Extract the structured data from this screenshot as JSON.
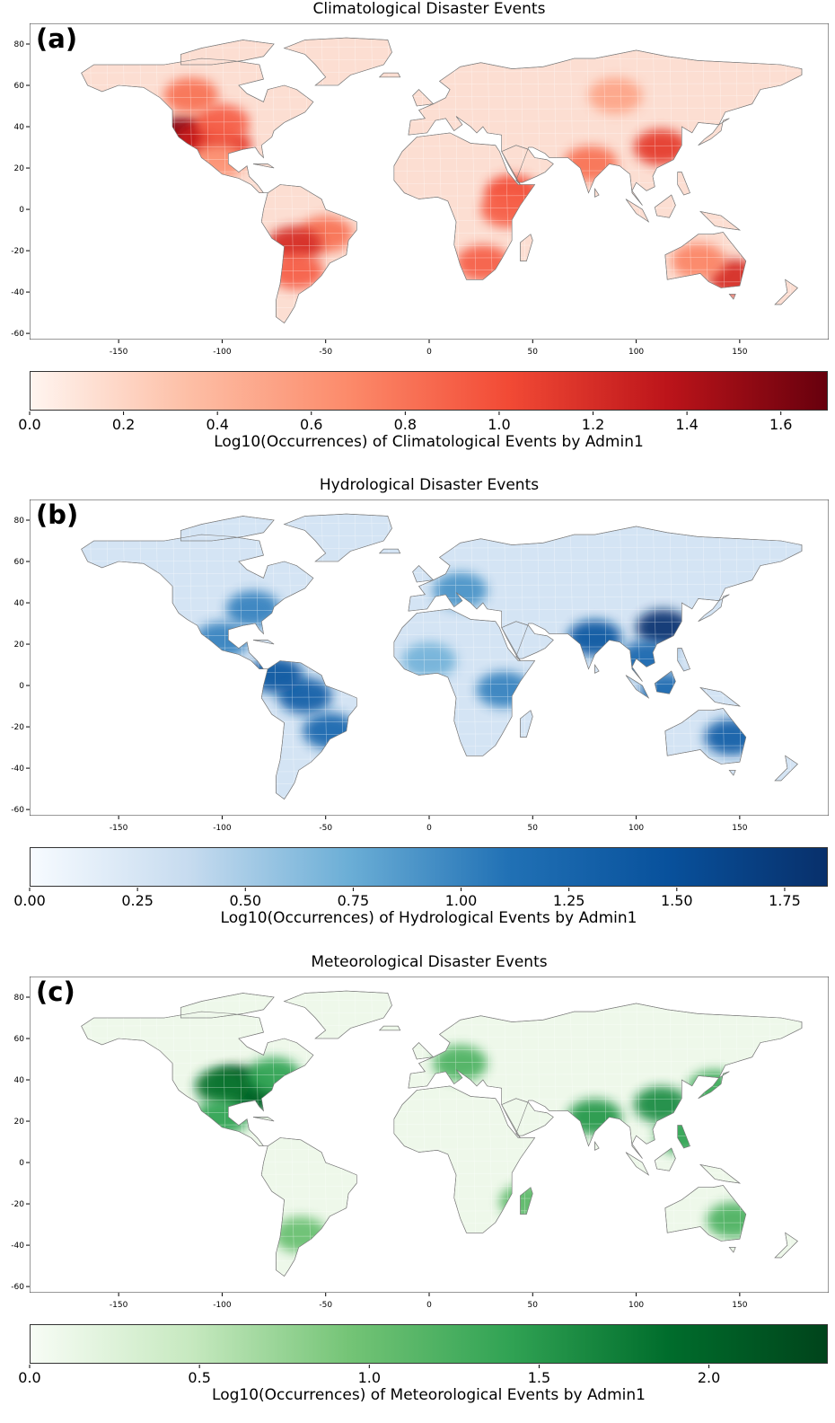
{
  "panels": [
    {
      "label": "(a)",
      "title": "Climatological Disaster Events",
      "colorbar_label": "Log10(Occurrences) of Climatological Events by Admin1",
      "colorbar_max": 1.7,
      "colorbar_ticks": [
        "0.0",
        "0.2",
        "0.4",
        "0.6",
        "0.8",
        "1.0",
        "1.2",
        "1.4",
        "1.6"
      ],
      "colorbar_tick_values": [
        0,
        0.2,
        0.4,
        0.6,
        0.8,
        1.0,
        1.2,
        1.4,
        1.6
      ],
      "colormap": [
        "#fff5f0",
        "#fdbea5",
        "#fc8a6a",
        "#f24a35",
        "#bc141a",
        "#67000d"
      ],
      "land_base": "#fcded2",
      "hotspots": [
        {
          "name": "california",
          "lon": -120,
          "lat": 36,
          "v": 1.6
        },
        {
          "name": "southwest-us",
          "lon": -110,
          "lat": 34,
          "v": 1.3
        },
        {
          "name": "texas",
          "lon": -99,
          "lat": 31,
          "v": 1.1
        },
        {
          "name": "great-plains",
          "lon": -100,
          "lat": 42,
          "v": 0.9
        },
        {
          "name": "canada-west",
          "lon": -115,
          "lat": 55,
          "v": 0.8
        },
        {
          "name": "mexico",
          "lon": -102,
          "lat": 23,
          "v": 0.6
        },
        {
          "name": "brazil",
          "lon": -50,
          "lat": -12,
          "v": 0.8
        },
        {
          "name": "bolivia",
          "lon": -65,
          "lat": -17,
          "v": 1.2
        },
        {
          "name": "argentina",
          "lon": -64,
          "lat": -30,
          "v": 0.9
        },
        {
          "name": "ethiopia",
          "lon": 40,
          "lat": 8,
          "v": 1.0
        },
        {
          "name": "kenya",
          "lon": 38,
          "lat": 0,
          "v": 0.9
        },
        {
          "name": "southern-africa",
          "lon": 26,
          "lat": -26,
          "v": 0.9
        },
        {
          "name": "china",
          "lon": 112,
          "lat": 30,
          "v": 1.1
        },
        {
          "name": "india",
          "lon": 78,
          "lat": 22,
          "v": 0.8
        },
        {
          "name": "australia-se",
          "lon": 148,
          "lat": -33,
          "v": 1.2
        },
        {
          "name": "australia",
          "lon": 130,
          "lat": -25,
          "v": 0.7
        },
        {
          "name": "russia",
          "lon": 90,
          "lat": 55,
          "v": 0.5
        }
      ]
    },
    {
      "label": "(b)",
      "title": "Hydrological Disaster Events",
      "colorbar_label": "Log10(Occurrences) of Hydrological Events by Admin1",
      "colorbar_max": 1.85,
      "colorbar_ticks": [
        "0.00",
        "0.25",
        "0.50",
        "0.75",
        "1.00",
        "1.25",
        "1.50",
        "1.75"
      ],
      "colorbar_tick_values": [
        0,
        0.25,
        0.5,
        0.75,
        1.0,
        1.25,
        1.5,
        1.75
      ],
      "colormap": [
        "#f7fbff",
        "#c6dbef",
        "#6baed6",
        "#2171b5",
        "#08519c",
        "#08306b"
      ],
      "land_base": "#d4e4f4",
      "hotspots": [
        {
          "name": "china",
          "lon": 113,
          "lat": 28,
          "v": 1.8
        },
        {
          "name": "india",
          "lon": 80,
          "lat": 23,
          "v": 1.4
        },
        {
          "name": "southeast-asia",
          "lon": 105,
          "lat": 13,
          "v": 1.2
        },
        {
          "name": "indonesia",
          "lon": 115,
          "lat": -3,
          "v": 1.2
        },
        {
          "name": "brazil-north",
          "lon": -60,
          "lat": -5,
          "v": 1.3
        },
        {
          "name": "colombia",
          "lon": -74,
          "lat": 5,
          "v": 1.4
        },
        {
          "name": "brazil-south",
          "lon": -48,
          "lat": -22,
          "v": 1.2
        },
        {
          "name": "us-east",
          "lon": -85,
          "lat": 37,
          "v": 1.0
        },
        {
          "name": "mexico",
          "lon": -100,
          "lat": 22,
          "v": 1.0
        },
        {
          "name": "australia-east",
          "lon": 146,
          "lat": -25,
          "v": 1.3
        },
        {
          "name": "east-africa",
          "lon": 36,
          "lat": -2,
          "v": 1.0
        },
        {
          "name": "europe",
          "lon": 15,
          "lat": 46,
          "v": 0.9
        },
        {
          "name": "west-africa",
          "lon": 0,
          "lat": 12,
          "v": 0.7
        }
      ]
    },
    {
      "label": "(c)",
      "title": "Meteorological Disaster Events",
      "colorbar_label": "Log10(Occurrences) of Meteorological Events by Admin1",
      "colorbar_max": 2.35,
      "colorbar_ticks": [
        "0.0",
        "0.5",
        "1.0",
        "1.5",
        "2.0"
      ],
      "colorbar_tick_values": [
        0,
        0.5,
        1.0,
        1.5,
        2.0
      ],
      "colormap": [
        "#f7fcf5",
        "#c7e9c0",
        "#74c476",
        "#31a354",
        "#006d2c",
        "#00441b"
      ],
      "land_base": "#eef8ea",
      "hotspots": [
        {
          "name": "us-midwest",
          "lon": -93,
          "lat": 38,
          "v": 2.2
        },
        {
          "name": "us-southeast",
          "lon": -85,
          "lat": 33,
          "v": 2.0
        },
        {
          "name": "us-plains",
          "lon": -100,
          "lat": 37,
          "v": 1.8
        },
        {
          "name": "us-northeast",
          "lon": -75,
          "lat": 42,
          "v": 1.4
        },
        {
          "name": "mexico",
          "lon": -100,
          "lat": 22,
          "v": 1.4
        },
        {
          "name": "china",
          "lon": 112,
          "lat": 28,
          "v": 1.6
        },
        {
          "name": "india",
          "lon": 80,
          "lat": 22,
          "v": 1.5
        },
        {
          "name": "europe",
          "lon": 15,
          "lat": 48,
          "v": 1.2
        },
        {
          "name": "japan",
          "lon": 138,
          "lat": 36,
          "v": 1.3
        },
        {
          "name": "philippines",
          "lon": 122,
          "lat": 13,
          "v": 1.4
        },
        {
          "name": "australia-east",
          "lon": 147,
          "lat": -28,
          "v": 1.2
        },
        {
          "name": "argentina",
          "lon": -62,
          "lat": -35,
          "v": 1.0
        },
        {
          "name": "madagascar",
          "lon": 47,
          "lat": -19,
          "v": 1.1
        }
      ]
    }
  ],
  "axes": {
    "x_ticks": [
      "-150",
      "-100",
      "-50",
      "0",
      "50",
      "100",
      "150"
    ],
    "x_tick_values": [
      -150,
      -100,
      -50,
      0,
      50,
      100,
      150
    ],
    "y_ticks": [
      "80",
      "60",
      "40",
      "20",
      "0",
      "-20",
      "-40",
      "-60"
    ],
    "y_tick_values": [
      80,
      60,
      40,
      20,
      0,
      -20,
      -40,
      -60
    ],
    "lon_range": [
      -193,
      193
    ],
    "lat_range": [
      -63,
      90
    ]
  }
}
